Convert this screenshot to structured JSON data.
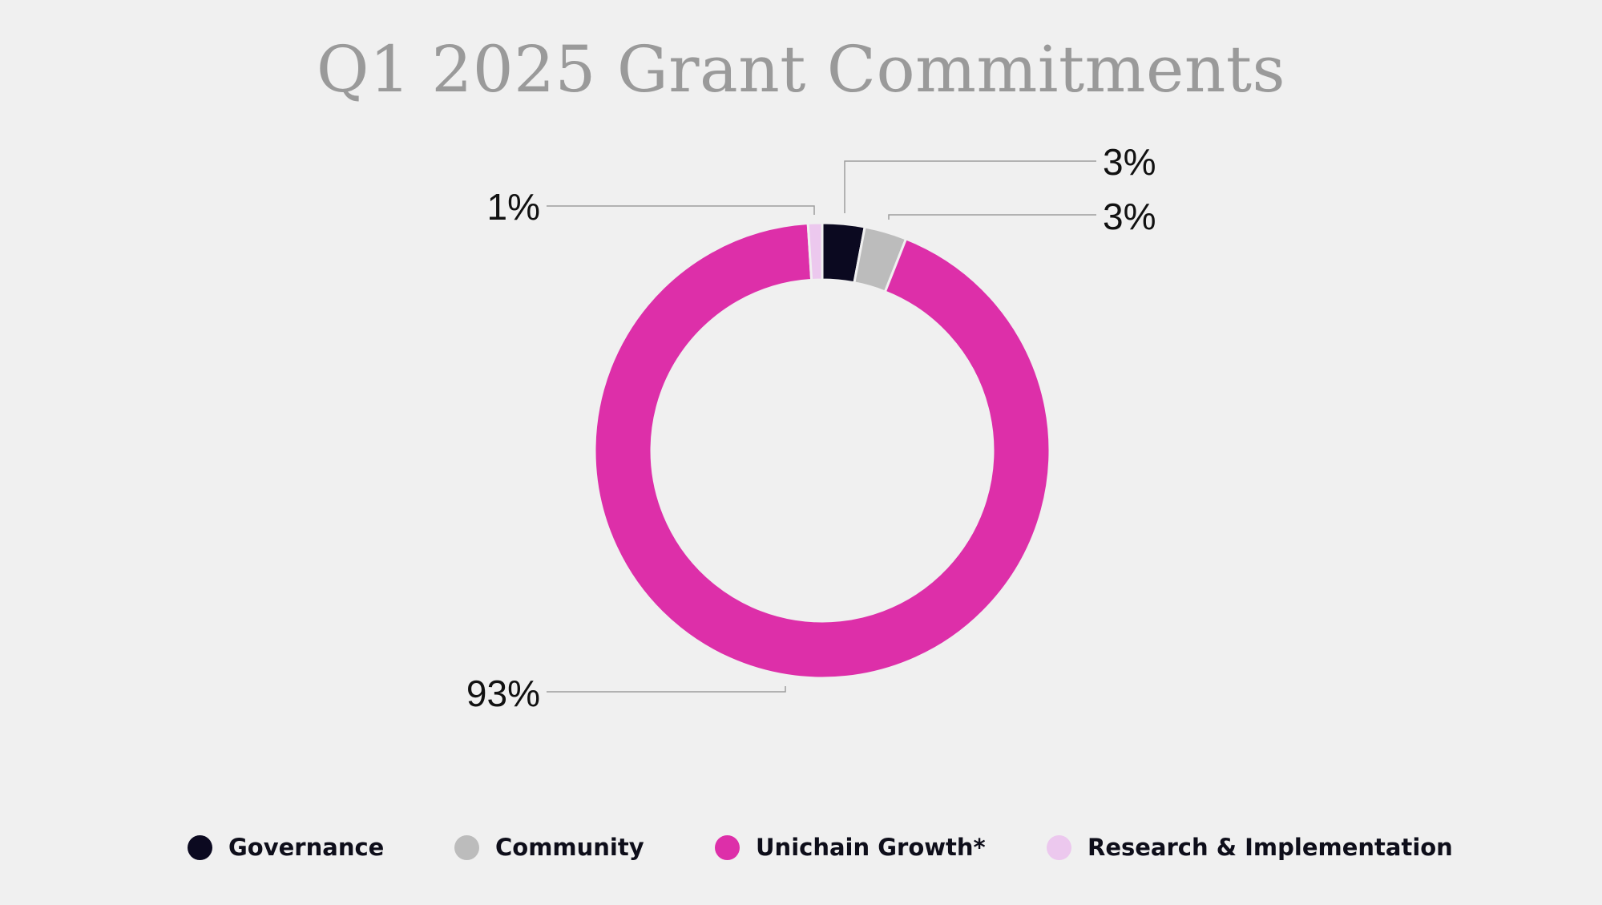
{
  "chart_data": {
    "type": "pie",
    "style": "donut",
    "title": "Q1 2025 Grant Commitments",
    "categories": [
      "Governance",
      "Community",
      "Unichain Growth*",
      "Research & Implementation"
    ],
    "values": [
      3,
      3,
      93,
      1
    ],
    "data_labels": [
      "3%",
      "3%",
      "93%",
      "1%"
    ],
    "colors": [
      "#0b0920",
      "#bcbcbc",
      "#dd2fa9",
      "#ecc8ee"
    ],
    "legend_placement": "bottom",
    "unit": "%"
  }
}
